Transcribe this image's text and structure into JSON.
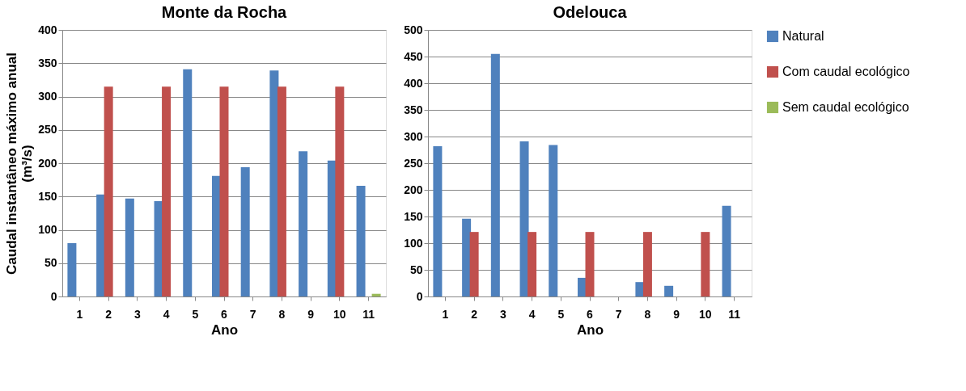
{
  "chart_data": [
    {
      "type": "bar",
      "title": "Monte da Rocha",
      "xlabel": "Ano",
      "ylabel": "Caudal instantâneo máximo anual\n(m³/s)",
      "categories": [
        "1",
        "2",
        "3",
        "4",
        "5",
        "6",
        "7",
        "8",
        "9",
        "10",
        "11"
      ],
      "series": [
        {
          "color": "#4f81bd",
          "values": [
            80,
            153,
            147,
            143,
            341,
            181,
            194,
            339,
            218,
            204,
            166
          ]
        },
        {
          "color": "#c0504d",
          "values": [
            null,
            315,
            null,
            315,
            null,
            315,
            null,
            315,
            null,
            315,
            null
          ]
        },
        {
          "color": "#9bbb59",
          "values": [
            null,
            null,
            null,
            null,
            null,
            null,
            null,
            null,
            null,
            null,
            4
          ]
        }
      ],
      "ylim": [
        0,
        400
      ],
      "yticks": [
        0,
        50,
        100,
        150,
        200,
        250,
        300,
        350,
        400
      ],
      "grid": "y",
      "legend": false
    },
    {
      "type": "bar",
      "title": "Odelouca",
      "xlabel": "Ano",
      "categories": [
        "1",
        "2",
        "3",
        "4",
        "5",
        "6",
        "7",
        "8",
        "9",
        "10",
        "11"
      ],
      "series": [
        {
          "name": "Natural",
          "color": "#4f81bd",
          "values": [
            282,
            146,
            455,
            291,
            284,
            35,
            null,
            27,
            20,
            null,
            170
          ]
        },
        {
          "name": "Com caudal ecológico",
          "color": "#c0504d",
          "values": [
            null,
            121,
            null,
            121,
            null,
            121,
            null,
            121,
            null,
            121,
            null
          ]
        },
        {
          "name": "Sem caudal ecológico",
          "color": "#9bbb59",
          "values": [
            null,
            null,
            null,
            null,
            null,
            null,
            null,
            null,
            null,
            null,
            null
          ]
        }
      ],
      "ylim": [
        0,
        500
      ],
      "yticks": [
        0,
        50,
        100,
        150,
        200,
        250,
        300,
        350,
        400,
        450,
        500
      ],
      "grid": "y",
      "legend": "right"
    }
  ]
}
